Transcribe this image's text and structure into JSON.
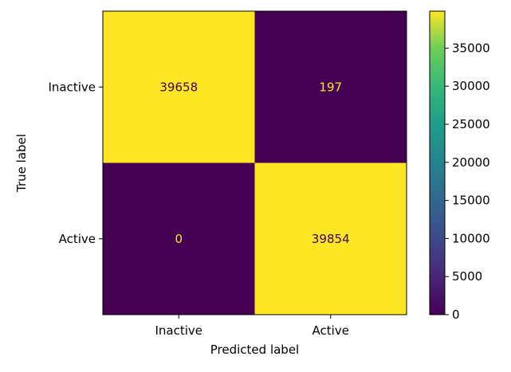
{
  "chart_data": {
    "type": "heatmap",
    "xlabel": "Predicted label",
    "ylabel": "True label",
    "x_categories": [
      "Inactive",
      "Active"
    ],
    "y_categories": [
      "Inactive",
      "Active"
    ],
    "values": [
      [
        39658,
        197
      ],
      [
        0,
        39854
      ]
    ],
    "colormap": "viridis",
    "colorbar": {
      "range": [
        0,
        39854
      ],
      "ticks": [
        0,
        5000,
        10000,
        15000,
        20000,
        25000,
        30000,
        35000
      ],
      "tick_labels": [
        "0",
        "5000",
        "10000",
        "15000",
        "20000",
        "25000",
        "30000",
        "35000"
      ]
    },
    "colors": {
      "high": "#fde725",
      "low": "#440154",
      "text_on_high": "#440154",
      "text_on_low": "#fde725"
    }
  }
}
